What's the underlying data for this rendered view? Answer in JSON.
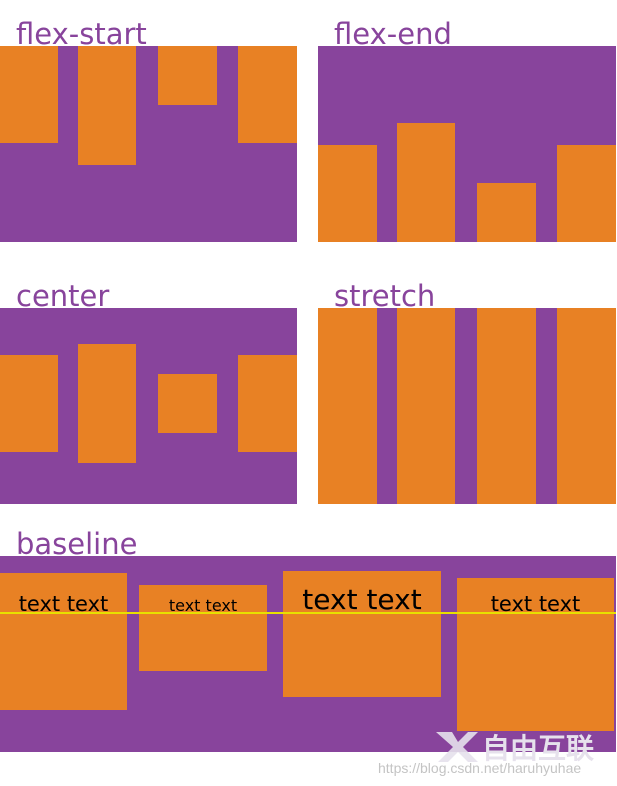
{
  "colors": {
    "container": "#88449c",
    "item": "#e88124",
    "text": "#000000",
    "baseline_line": "#e8e000",
    "label": "#88449c"
  },
  "panels": [
    {
      "label": "flex-start",
      "align": "flex-start"
    },
    {
      "label": "flex-end",
      "align": "flex-end"
    },
    {
      "label": "center",
      "align": "center"
    },
    {
      "label": "stretch",
      "align": "stretch"
    }
  ],
  "baseline_panel": {
    "label": "baseline",
    "items": [
      {
        "text": "text text"
      },
      {
        "text": "text text"
      },
      {
        "text": "text text"
      },
      {
        "text": "text text"
      }
    ]
  },
  "watermark": {
    "url": "https://blog.csdn.net/haruhyuhae",
    "logo_text": "自由互联"
  }
}
